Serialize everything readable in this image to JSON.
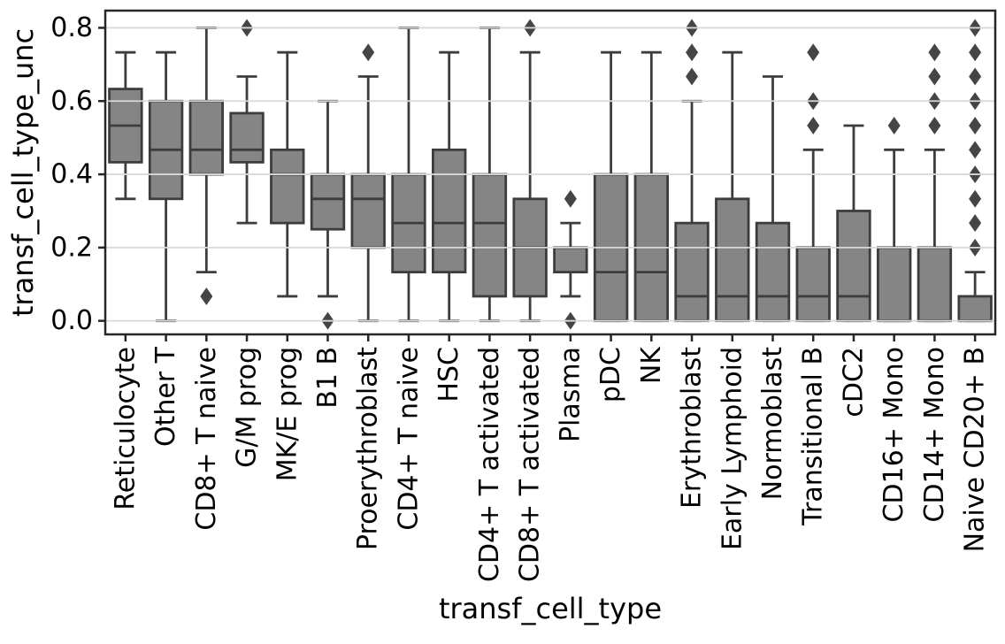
{
  "chart_data": {
    "type": "boxplot",
    "title": "",
    "xlabel": "transf_cell_type",
    "ylabel": "transf_cell_type_unc",
    "ytick_labels": [
      "0.0",
      "0.2",
      "0.4",
      "0.6",
      "0.8"
    ],
    "ytick_values": [
      0.0,
      0.2,
      0.4,
      0.6,
      0.8
    ],
    "ylim": [
      -0.037,
      0.847
    ],
    "grid": "horizontal gridlines at y ticks, light gray, drawn above boxes",
    "legend_position": "none",
    "categories": [
      "Reticulocyte",
      "Other T",
      "CD8+ T naive",
      "G/M prog",
      "MK/E prog",
      "B1 B",
      "Proerythroblast",
      "CD4+ T naive",
      "HSC",
      "CD4+ T activated",
      "CD8+ T activated",
      "Plasma",
      "pDC",
      "NK",
      "Erythroblast",
      "Early Lymphoid",
      "Normoblast",
      "Transitional B",
      "cDC2",
      "CD16+ Mono",
      "CD14+ Mono",
      "Naive CD20+ B"
    ],
    "series": [
      {
        "label": "Reticulocyte",
        "whisker_low": 0.333,
        "q1": 0.433,
        "median": 0.533,
        "q3": 0.633,
        "whisker_high": 0.733,
        "outliers": []
      },
      {
        "label": "Other T",
        "whisker_low": 0.0,
        "q1": 0.333,
        "median": 0.467,
        "q3": 0.6,
        "whisker_high": 0.733,
        "outliers": []
      },
      {
        "label": "CD8+ T naive",
        "whisker_low": 0.133,
        "q1": 0.4,
        "median": 0.467,
        "q3": 0.6,
        "whisker_high": 0.8,
        "outliers": [
          0.067
        ]
      },
      {
        "label": "G/M prog",
        "whisker_low": 0.267,
        "q1": 0.433,
        "median": 0.467,
        "q3": 0.567,
        "whisker_high": 0.667,
        "outliers": [
          0.8
        ]
      },
      {
        "label": "MK/E prog",
        "whisker_low": 0.067,
        "q1": 0.267,
        "median": 0.4,
        "q3": 0.467,
        "whisker_high": 0.733,
        "outliers": []
      },
      {
        "label": "B1 B",
        "whisker_low": 0.067,
        "q1": 0.25,
        "median": 0.333,
        "q3": 0.4,
        "whisker_high": 0.6,
        "outliers": [
          0.0
        ]
      },
      {
        "label": "Proerythroblast",
        "whisker_low": 0.0,
        "q1": 0.2,
        "median": 0.333,
        "q3": 0.4,
        "whisker_high": 0.667,
        "outliers": [
          0.733
        ]
      },
      {
        "label": "CD4+ T naive",
        "whisker_low": 0.0,
        "q1": 0.133,
        "median": 0.267,
        "q3": 0.4,
        "whisker_high": 0.8,
        "outliers": []
      },
      {
        "label": "HSC",
        "whisker_low": 0.0,
        "q1": 0.133,
        "median": 0.267,
        "q3": 0.467,
        "whisker_high": 0.733,
        "outliers": []
      },
      {
        "label": "CD4+ T activated",
        "whisker_low": 0.0,
        "q1": 0.067,
        "median": 0.267,
        "q3": 0.4,
        "whisker_high": 0.8,
        "outliers": []
      },
      {
        "label": "CD8+ T activated",
        "whisker_low": 0.0,
        "q1": 0.067,
        "median": 0.2,
        "q3": 0.333,
        "whisker_high": 0.733,
        "outliers": [
          0.8
        ]
      },
      {
        "label": "Plasma",
        "whisker_low": 0.067,
        "q1": 0.133,
        "median": 0.2,
        "q3": 0.2,
        "whisker_high": 0.267,
        "outliers": [
          0.0,
          0.333
        ]
      },
      {
        "label": "pDC",
        "whisker_low": 0.0,
        "q1": 0.0,
        "median": 0.133,
        "q3": 0.4,
        "whisker_high": 0.733,
        "outliers": []
      },
      {
        "label": "NK",
        "whisker_low": 0.0,
        "q1": 0.0,
        "median": 0.133,
        "q3": 0.4,
        "whisker_high": 0.733,
        "outliers": []
      },
      {
        "label": "Erythroblast",
        "whisker_low": 0.0,
        "q1": 0.0,
        "median": 0.067,
        "q3": 0.267,
        "whisker_high": 0.6,
        "outliers": [
          0.667,
          0.733,
          0.8
        ]
      },
      {
        "label": "Early Lymphoid",
        "whisker_low": 0.0,
        "q1": 0.0,
        "median": 0.067,
        "q3": 0.333,
        "whisker_high": 0.733,
        "outliers": []
      },
      {
        "label": "Normoblast",
        "whisker_low": 0.0,
        "q1": 0.0,
        "median": 0.067,
        "q3": 0.267,
        "whisker_high": 0.667,
        "outliers": []
      },
      {
        "label": "Transitional B",
        "whisker_low": 0.0,
        "q1": 0.0,
        "median": 0.067,
        "q3": 0.2,
        "whisker_high": 0.467,
        "outliers": [
          0.533,
          0.6,
          0.733
        ]
      },
      {
        "label": "cDC2",
        "whisker_low": 0.0,
        "q1": 0.0,
        "median": 0.067,
        "q3": 0.3,
        "whisker_high": 0.533,
        "outliers": []
      },
      {
        "label": "CD16+ Mono",
        "whisker_low": 0.0,
        "q1": 0.0,
        "median": 0.0,
        "q3": 0.2,
        "whisker_high": 0.467,
        "outliers": [
          0.533
        ]
      },
      {
        "label": "CD14+ Mono",
        "whisker_low": 0.0,
        "q1": 0.0,
        "median": 0.0,
        "q3": 0.2,
        "whisker_high": 0.467,
        "outliers": [
          0.533,
          0.6,
          0.667,
          0.733
        ]
      },
      {
        "label": "Naive CD20+ B",
        "whisker_low": 0.0,
        "q1": 0.0,
        "median": 0.0,
        "q3": 0.067,
        "whisker_high": 0.133,
        "outliers": [
          0.2,
          0.267,
          0.333,
          0.4,
          0.467,
          0.533,
          0.6,
          0.667,
          0.733,
          0.8
        ]
      }
    ],
    "style": {
      "box_fill": "#858585",
      "box_edge": "#3d3d3d",
      "flier_color": "#454545",
      "grid_color": "#d9d9d9",
      "spine_color": "#262626",
      "text_color": "#000000",
      "background": "#ffffff"
    }
  }
}
